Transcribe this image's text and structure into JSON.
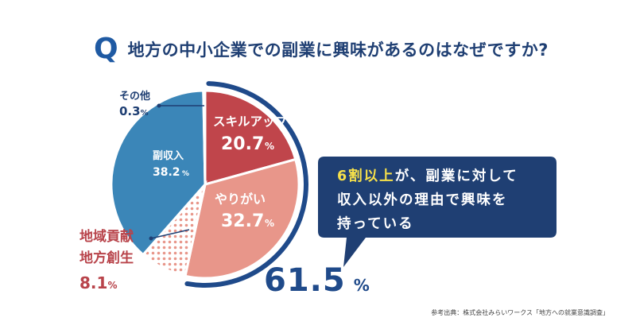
{
  "title": {
    "q_mark": "Q",
    "text": "地方の中小企業での副業に興味があるのはなぜですか?"
  },
  "chart_data": {
    "type": "pie",
    "slices": [
      {
        "label": "スキルアップ・成長",
        "value": 20.7,
        "color": "#c0454b"
      },
      {
        "label": "やりがい",
        "value": 32.7,
        "color": "#e8968a"
      },
      {
        "label": "地域貢献\n地方創生",
        "value": 8.1,
        "color": "#f3c5bd"
      },
      {
        "label": "副収入",
        "value": 38.2,
        "color": "#3b86b8"
      },
      {
        "label": "その他",
        "value": 0.3,
        "color": "#b5d0e6"
      }
    ],
    "unit": "%",
    "highlight_total": "61.5",
    "highlight_unit": "%"
  },
  "labels": {
    "skill": {
      "name": "スキルアップ・成長",
      "value": "20.7",
      "unit": "%"
    },
    "yarigai": {
      "name": "やりがい",
      "value": "32.7",
      "unit": "%"
    },
    "fukushu": {
      "name": "副収入",
      "value": "38.2",
      "unit": "%"
    },
    "region": {
      "name1": "地域貢献",
      "name2": "地方創生",
      "value": "8.1",
      "unit": "%"
    },
    "other": {
      "name": "その他",
      "value": "0.3",
      "unit": "%"
    }
  },
  "callout": {
    "highlight": "6割以上",
    "line1_rest": "が、副業に対して",
    "line2": "収入以外の理由で興味を",
    "line3": "持っている",
    "bg_color": "#1f3f73"
  },
  "source": "参考出典：株式会社みらいワークス「地方への就業意識調査」",
  "colors": {
    "navy": "#1f3f73",
    "accent": "#1f5aa3",
    "red": "#c0454b",
    "salmon": "#e8968a",
    "blue": "#3b86b8",
    "yellow": "#f7e14a"
  }
}
